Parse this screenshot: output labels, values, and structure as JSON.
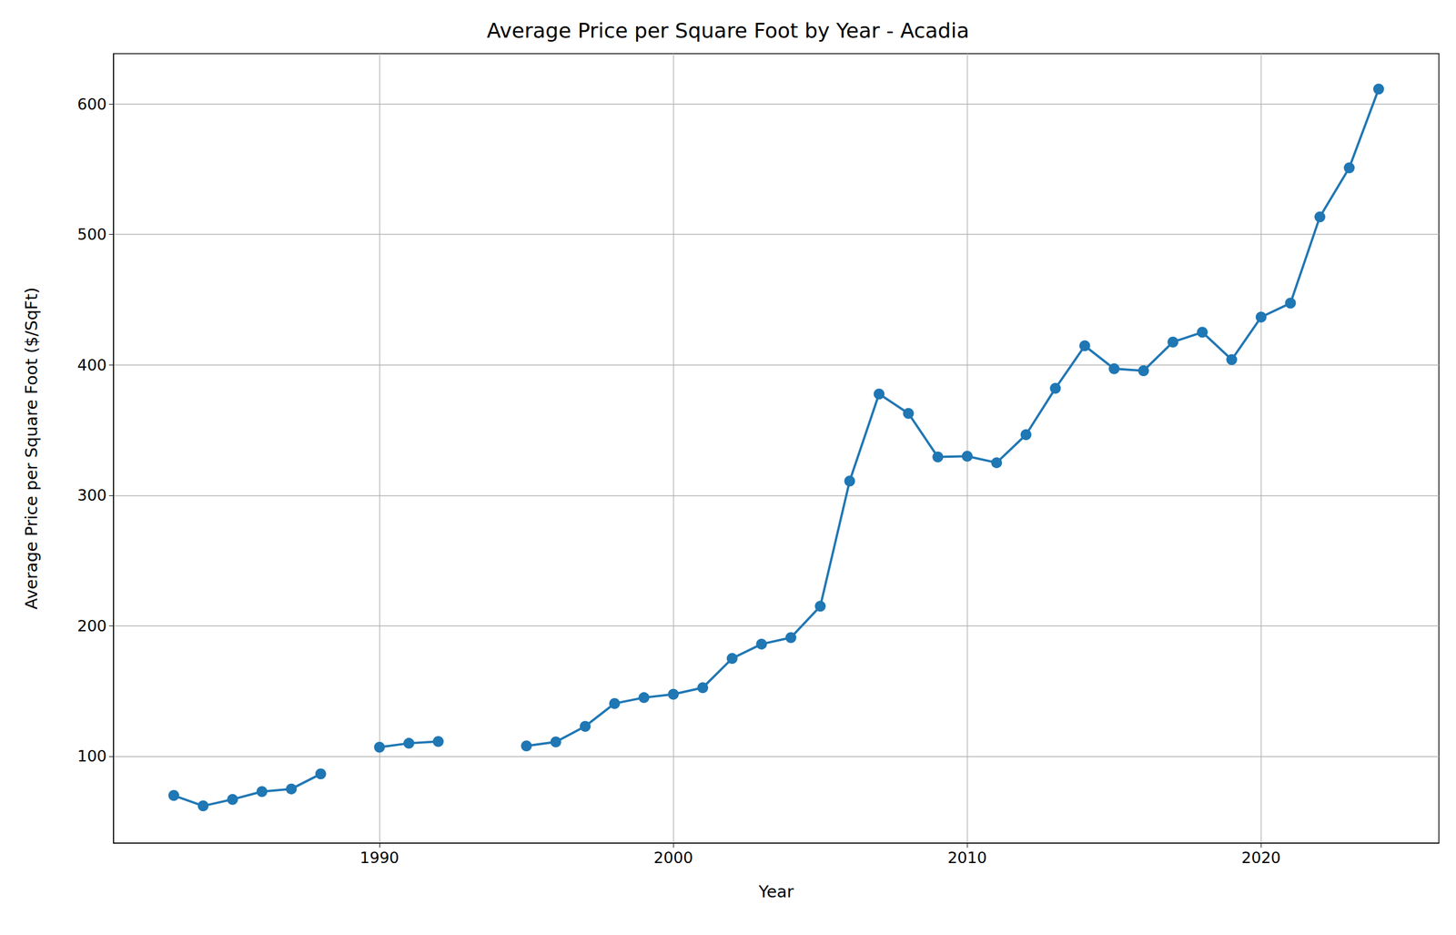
{
  "chart_data": {
    "type": "line",
    "title": "Average Price per Square Foot by Year - Acadia",
    "x_label": "Year",
    "y_label": "Average Price per Square Foot ($/SqFt)",
    "x": [
      1983,
      1984,
      1985,
      1986,
      1987,
      1988,
      1989,
      1990,
      1991,
      1992,
      1993,
      1994,
      1995,
      1996,
      1997,
      1998,
      1999,
      2000,
      2001,
      2002,
      2003,
      2004,
      2005,
      2006,
      2007,
      2008,
      2009,
      2010,
      2011,
      2012,
      2013,
      2014,
      2015,
      2016,
      2017,
      2018,
      2019,
      2020,
      2021,
      2022,
      2023,
      2024
    ],
    "values": [
      70,
      62,
      67,
      73,
      75,
      86.5,
      null,
      107,
      110,
      111.4,
      null,
      null,
      108,
      111,
      123,
      140.5,
      145,
      147.6,
      152.6,
      175,
      186,
      191,
      215,
      311,
      377.7,
      362.8,
      329.4,
      330,
      325,
      346.5,
      382,
      414.6,
      397,
      395.5,
      417.5,
      425,
      404,
      436.6,
      447.3,
      513.4,
      551,
      611.4
    ],
    "color": "#1f77b4",
    "marker": "circle",
    "line_style": "solid",
    "xlim": [
      1980.95,
      2026.05
    ],
    "xticks": [
      1990,
      2000,
      2010,
      2020
    ],
    "ylim": [
      33.5,
      638.5
    ],
    "yticks": [
      100,
      200,
      300,
      400,
      500,
      600
    ],
    "grid": true
  }
}
